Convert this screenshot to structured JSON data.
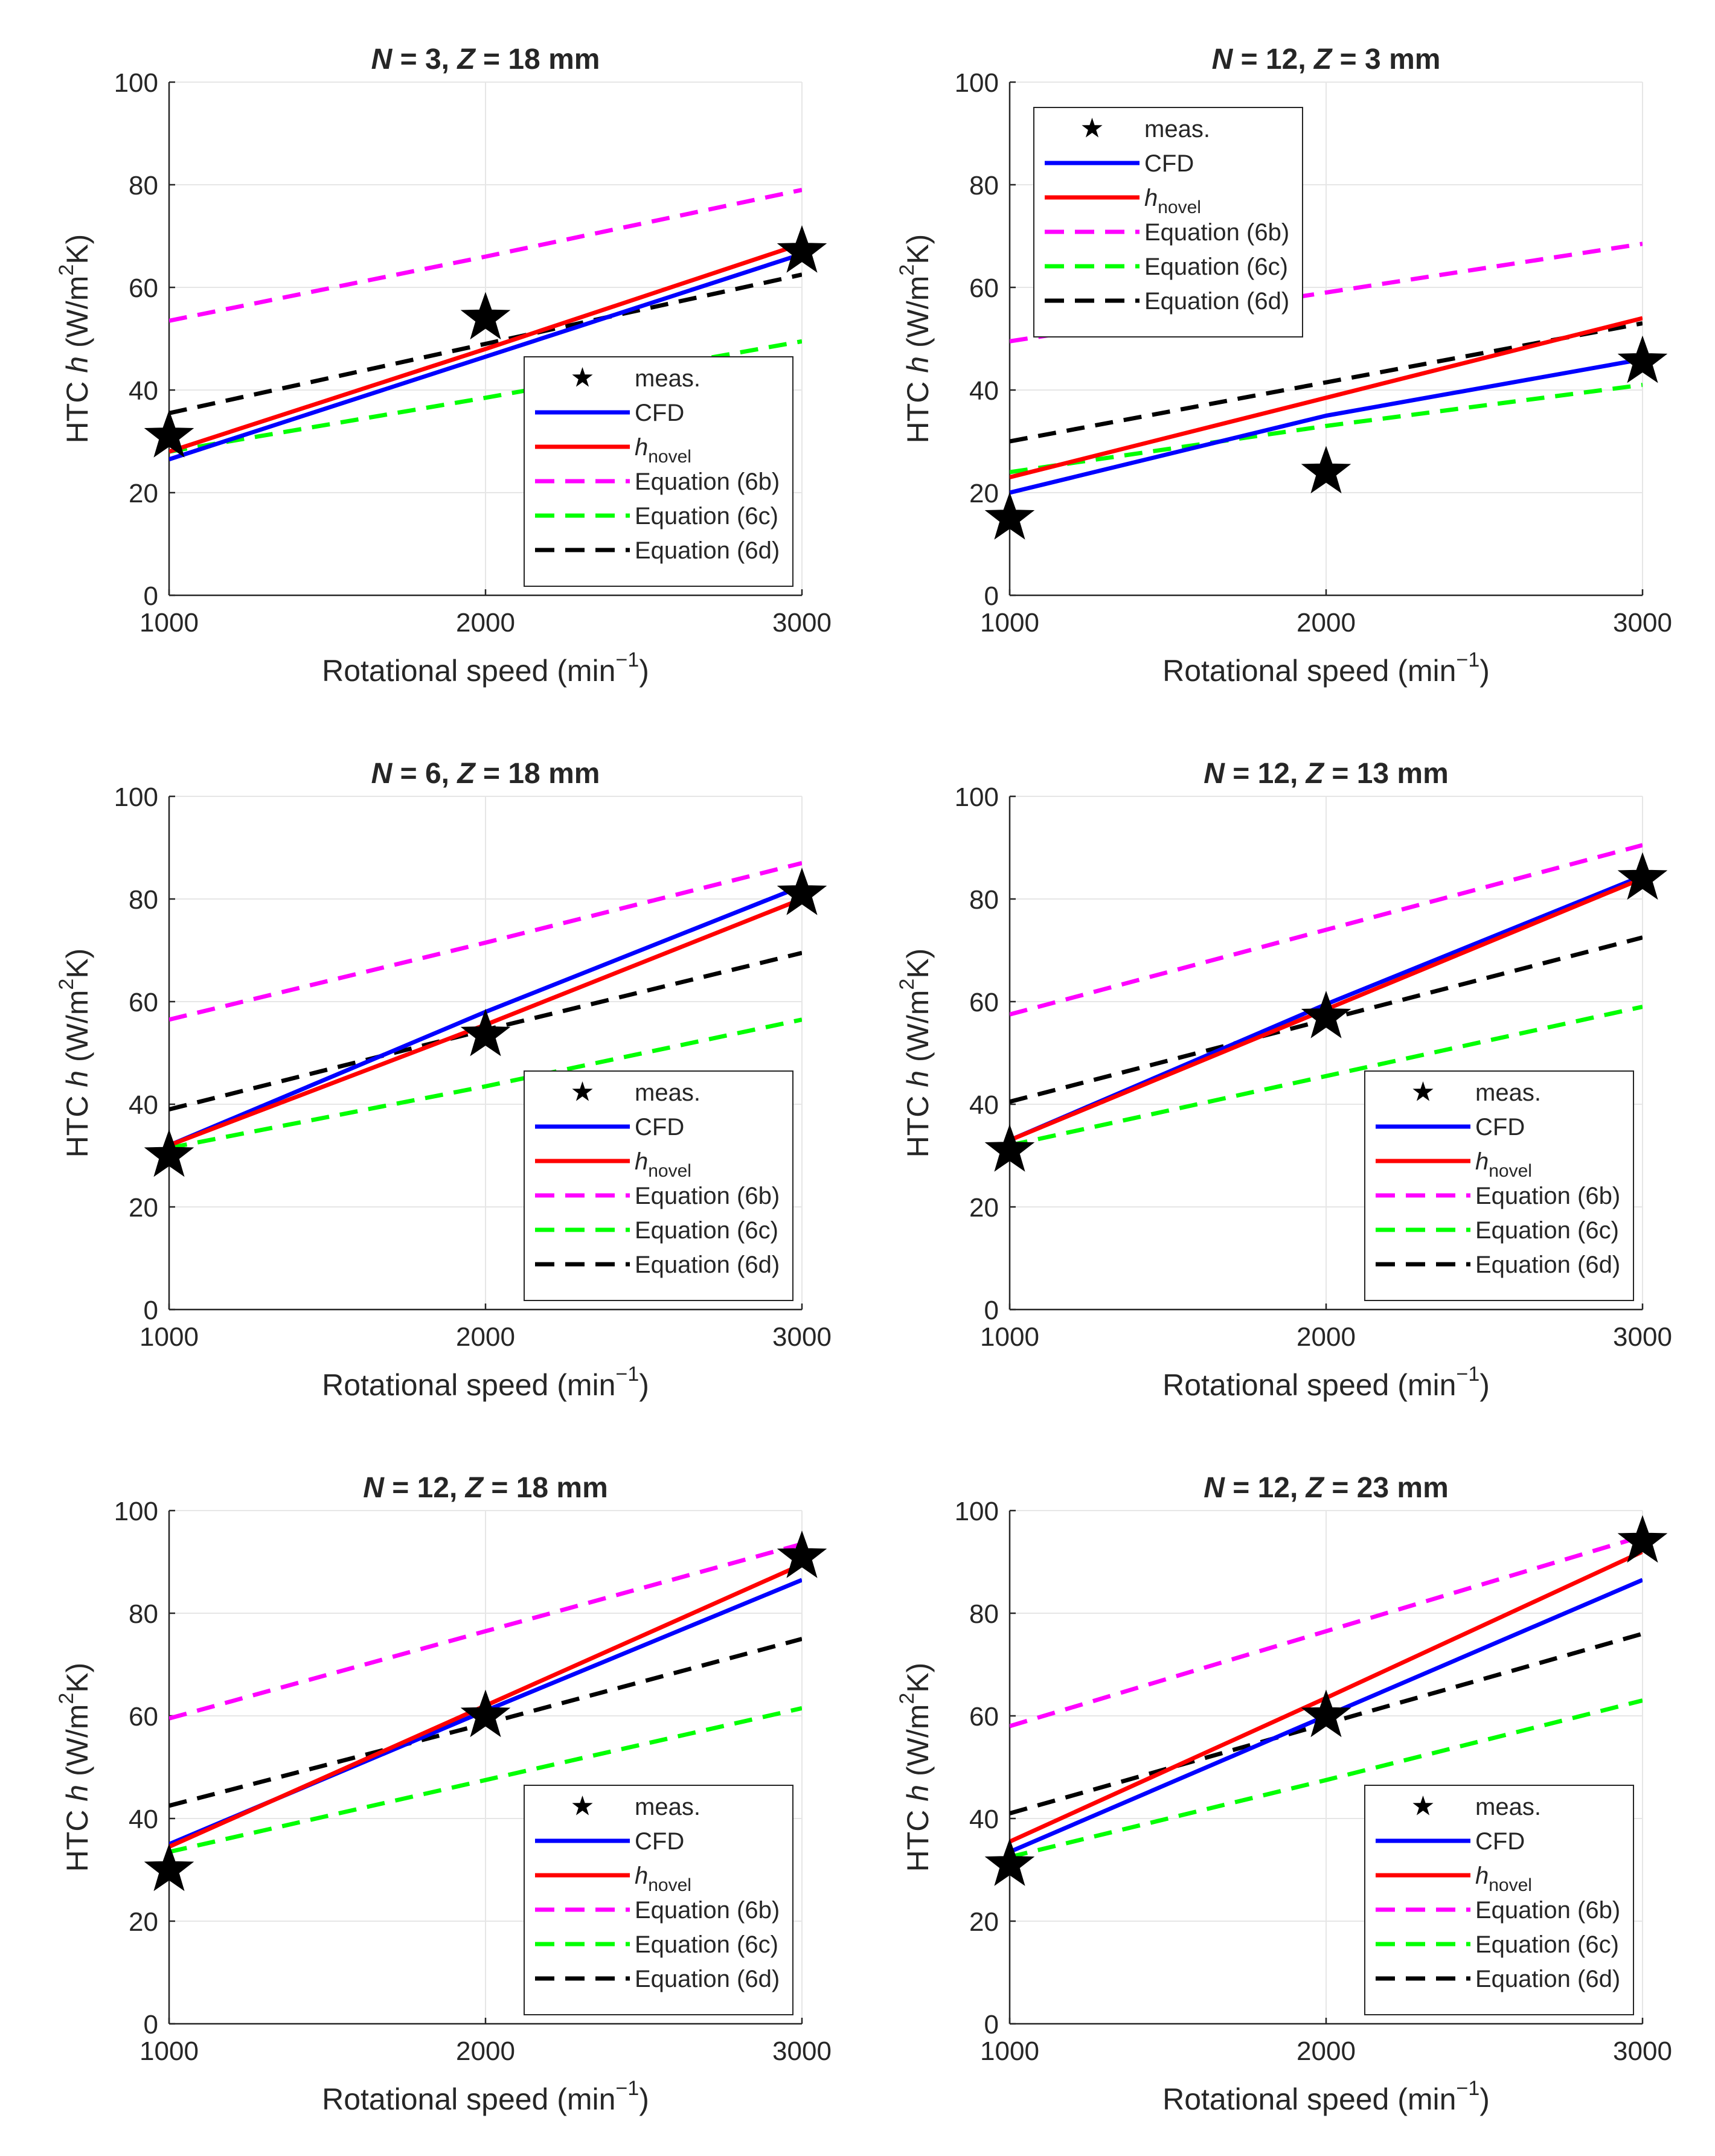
{
  "figure": {
    "charts_order": [
      "top-left",
      "top-right",
      "middle-left",
      "middle-right",
      "bottom-left",
      "bottom-right"
    ]
  },
  "chart_data": [
    {
      "type": "line",
      "title": {
        "pre": "N",
        "mid": " = 3, ",
        "pre2": "Z",
        "post": " = 18 mm"
      },
      "xlabel": "Rotational speed (min",
      "xlabel_sup": "−1",
      "xlabel_post": ")",
      "ylabel": "HTC ",
      "ylabel_italic": "h",
      "ylabel_unit": " (W/m",
      "ylabel_sup": "2",
      "ylabel_post": "K)",
      "x": [
        1000,
        2000,
        3000
      ],
      "xticks": [
        "1000",
        "2000",
        "3000"
      ],
      "yticks": [
        "0",
        "20",
        "40",
        "60",
        "80",
        "100"
      ],
      "xlim": [
        1000,
        3000
      ],
      "ylim": [
        0,
        100
      ],
      "grid": true,
      "legend_position": "bottom-right",
      "series": [
        {
          "name": "meas.",
          "kind": "marker",
          "color": "#000000",
          "values": [
            31,
            54,
            67
          ]
        },
        {
          "name": "CFD",
          "kind": "solid",
          "color": "#0000ff",
          "values": [
            26.5,
            46.5,
            66.5
          ]
        },
        {
          "name": "h",
          "name_sub": "novel",
          "kind": "solid",
          "color": "#ff0000",
          "values": [
            28,
            48,
            68.5
          ]
        },
        {
          "name": "Equation (6b)",
          "kind": "dashed",
          "color": "#ff00ff",
          "values": [
            53.5,
            66,
            79
          ]
        },
        {
          "name": "Equation (6c)",
          "kind": "dashed",
          "color": "#00ff00",
          "values": [
            28,
            38.5,
            49.5
          ]
        },
        {
          "name": "Equation (6d)",
          "kind": "dashed",
          "color": "#000000",
          "values": [
            35.5,
            49,
            62.5
          ]
        }
      ]
    },
    {
      "type": "line",
      "title": {
        "pre": "N",
        "mid": " = 12, ",
        "pre2": "Z",
        "post": " = 3 mm"
      },
      "xlabel": "Rotational speed (min",
      "xlabel_sup": "−1",
      "xlabel_post": ")",
      "ylabel": "HTC ",
      "ylabel_italic": "h",
      "ylabel_unit": " (W/m",
      "ylabel_sup": "2",
      "ylabel_post": "K)",
      "x": [
        1000,
        2000,
        3000
      ],
      "xticks": [
        "1000",
        "2000",
        "3000"
      ],
      "yticks": [
        "0",
        "20",
        "40",
        "60",
        "80",
        "100"
      ],
      "xlim": [
        1000,
        3000
      ],
      "ylim": [
        0,
        100
      ],
      "grid": true,
      "legend_position": "top-left",
      "series": [
        {
          "name": "meas.",
          "kind": "marker",
          "color": "#000000",
          "values": [
            15,
            24,
            45.5
          ]
        },
        {
          "name": "CFD",
          "kind": "solid",
          "color": "#0000ff",
          "values": [
            20,
            35,
            46
          ]
        },
        {
          "name": "h",
          "name_sub": "novel",
          "kind": "solid",
          "color": "#ff0000",
          "values": [
            23,
            38.5,
            54
          ]
        },
        {
          "name": "Equation (6b)",
          "kind": "dashed",
          "color": "#ff00ff",
          "values": [
            49.5,
            59,
            68.5
          ]
        },
        {
          "name": "Equation (6c)",
          "kind": "dashed",
          "color": "#00ff00",
          "values": [
            24,
            33,
            41
          ]
        },
        {
          "name": "Equation (6d)",
          "kind": "dashed",
          "color": "#000000",
          "values": [
            30,
            41.5,
            53
          ]
        }
      ]
    },
    {
      "type": "line",
      "title": {
        "pre": "N",
        "mid": " = 6, ",
        "pre2": "Z",
        "post": " = 18 mm"
      },
      "xlabel": "Rotational speed (min",
      "xlabel_sup": "−1",
      "xlabel_post": ")",
      "ylabel": "HTC ",
      "ylabel_italic": "h",
      "ylabel_unit": " (W/m",
      "ylabel_sup": "2",
      "ylabel_post": "K)",
      "x": [
        1000,
        2000,
        3000
      ],
      "xticks": [
        "1000",
        "2000",
        "3000"
      ],
      "yticks": [
        "0",
        "20",
        "40",
        "60",
        "80",
        "100"
      ],
      "xlim": [
        1000,
        3000
      ],
      "ylim": [
        0,
        100
      ],
      "grid": true,
      "legend_position": "bottom-right",
      "series": [
        {
          "name": "meas.",
          "kind": "marker",
          "color": "#000000",
          "values": [
            30,
            53.5,
            81
          ]
        },
        {
          "name": "CFD",
          "kind": "solid",
          "color": "#0000ff",
          "values": [
            32,
            58,
            82.5
          ]
        },
        {
          "name": "h",
          "name_sub": "novel",
          "kind": "solid",
          "color": "#ff0000",
          "values": [
            32,
            55.5,
            80
          ]
        },
        {
          "name": "Equation (6b)",
          "kind": "dashed",
          "color": "#ff00ff",
          "values": [
            56.5,
            71.5,
            87
          ]
        },
        {
          "name": "Equation (6c)",
          "kind": "dashed",
          "color": "#00ff00",
          "values": [
            31.5,
            43.5,
            56.5
          ]
        },
        {
          "name": "Equation (6d)",
          "kind": "dashed",
          "color": "#000000",
          "values": [
            39,
            54.5,
            69.5
          ]
        }
      ]
    },
    {
      "type": "line",
      "title": {
        "pre": "N",
        "mid": " = 12, ",
        "pre2": "Z",
        "post": " = 13 mm"
      },
      "xlabel": "Rotational speed (min",
      "xlabel_sup": "−1",
      "xlabel_post": ")",
      "ylabel": "HTC ",
      "ylabel_italic": "h",
      "ylabel_unit": " (W/m",
      "ylabel_sup": "2",
      "ylabel_post": "K)",
      "x": [
        1000,
        2000,
        3000
      ],
      "xticks": [
        "1000",
        "2000",
        "3000"
      ],
      "yticks": [
        "0",
        "20",
        "40",
        "60",
        "80",
        "100"
      ],
      "xlim": [
        1000,
        3000
      ],
      "ylim": [
        0,
        100
      ],
      "grid": true,
      "legend_position": "bottom-right",
      "series": [
        {
          "name": "meas.",
          "kind": "marker",
          "color": "#000000",
          "values": [
            31,
            57,
            84
          ]
        },
        {
          "name": "CFD",
          "kind": "solid",
          "color": "#0000ff",
          "values": [
            33,
            59.5,
            84.5
          ]
        },
        {
          "name": "h",
          "name_sub": "novel",
          "kind": "solid",
          "color": "#ff0000",
          "values": [
            33,
            58.5,
            84
          ]
        },
        {
          "name": "Equation (6b)",
          "kind": "dashed",
          "color": "#ff00ff",
          "values": [
            57.5,
            74,
            90.5
          ]
        },
        {
          "name": "Equation (6c)",
          "kind": "dashed",
          "color": "#00ff00",
          "values": [
            32,
            45.5,
            59
          ]
        },
        {
          "name": "Equation (6d)",
          "kind": "dashed",
          "color": "#000000",
          "values": [
            40.5,
            56.5,
            72.5
          ]
        }
      ]
    },
    {
      "type": "line",
      "title": {
        "pre": "N",
        "mid": " = 12, ",
        "pre2": "Z",
        "post": " = 18 mm"
      },
      "xlabel": "Rotational speed (min",
      "xlabel_sup": "−1",
      "xlabel_post": ")",
      "ylabel": "HTC ",
      "ylabel_italic": "h",
      "ylabel_unit": " (W/m",
      "ylabel_sup": "2",
      "ylabel_post": "K)",
      "x": [
        1000,
        2000,
        3000
      ],
      "xticks": [
        "1000",
        "2000",
        "3000"
      ],
      "yticks": [
        "0",
        "20",
        "40",
        "60",
        "80",
        "100"
      ],
      "xlim": [
        1000,
        3000
      ],
      "ylim": [
        0,
        100
      ],
      "grid": true,
      "legend_position": "bottom-right",
      "series": [
        {
          "name": "meas.",
          "kind": "marker",
          "color": "#000000",
          "values": [
            30,
            60,
            91
          ]
        },
        {
          "name": "CFD",
          "kind": "solid",
          "color": "#0000ff",
          "values": [
            35,
            61,
            86.5
          ]
        },
        {
          "name": "h",
          "name_sub": "novel",
          "kind": "solid",
          "color": "#ff0000",
          "values": [
            34.5,
            62,
            89.5
          ]
        },
        {
          "name": "Equation (6b)",
          "kind": "dashed",
          "color": "#ff00ff",
          "values": [
            59.5,
            76.5,
            93.5
          ]
        },
        {
          "name": "Equation (6c)",
          "kind": "dashed",
          "color": "#00ff00",
          "values": [
            33.5,
            47.5,
            61.5
          ]
        },
        {
          "name": "Equation (6d)",
          "kind": "dashed",
          "color": "#000000",
          "values": [
            42.5,
            58.5,
            75
          ]
        }
      ]
    },
    {
      "type": "line",
      "title": {
        "pre": "N",
        "mid": " = 12, ",
        "pre2": "Z",
        "post": " = 23 mm"
      },
      "xlabel": "Rotational speed (min",
      "xlabel_sup": "−1",
      "xlabel_post": ")",
      "ylabel": "HTC ",
      "ylabel_italic": "h",
      "ylabel_unit": " (W/m",
      "ylabel_sup": "2",
      "ylabel_post": "K)",
      "x": [
        1000,
        2000,
        3000
      ],
      "xticks": [
        "1000",
        "2000",
        "3000"
      ],
      "yticks": [
        "0",
        "20",
        "40",
        "60",
        "80",
        "100"
      ],
      "xlim": [
        1000,
        3000
      ],
      "ylim": [
        0,
        100
      ],
      "grid": true,
      "legend_position": "bottom-right",
      "series": [
        {
          "name": "meas.",
          "kind": "marker",
          "color": "#000000",
          "values": [
            31,
            60,
            94
          ]
        },
        {
          "name": "CFD",
          "kind": "solid",
          "color": "#0000ff",
          "values": [
            33.5,
            60,
            86.5
          ]
        },
        {
          "name": "h",
          "name_sub": "novel",
          "kind": "solid",
          "color": "#ff0000",
          "values": [
            35.5,
            63.5,
            92
          ]
        },
        {
          "name": "Equation (6b)",
          "kind": "dashed",
          "color": "#ff00ff",
          "values": [
            58,
            76.5,
            95
          ]
        },
        {
          "name": "Equation (6c)",
          "kind": "dashed",
          "color": "#00ff00",
          "values": [
            32.5,
            47.5,
            63
          ]
        },
        {
          "name": "Equation (6d)",
          "kind": "dashed",
          "color": "#000000",
          "values": [
            41,
            58.5,
            76
          ]
        }
      ]
    }
  ]
}
